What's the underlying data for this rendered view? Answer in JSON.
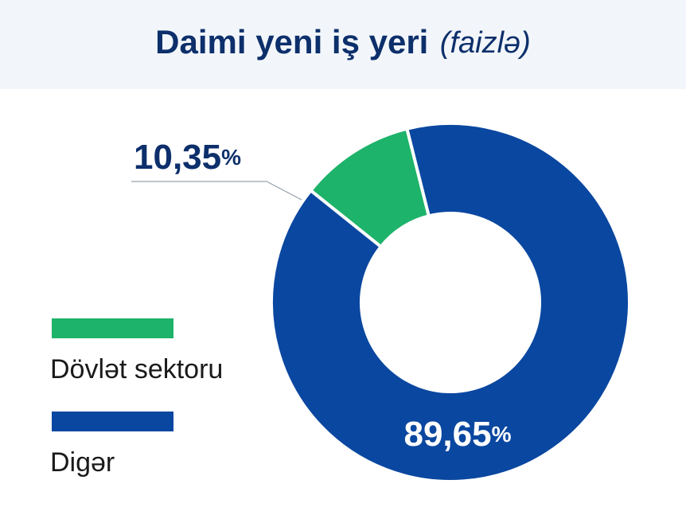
{
  "chart_data": {
    "type": "donut",
    "title": "Daimi yeni iş yeri",
    "title_note": "(faizlə)",
    "categories": [
      "Dövlət sektoru",
      "Digər"
    ],
    "values": [
      10.35,
      89.65
    ],
    "value_labels": [
      "10,35%",
      "89,65%"
    ],
    "colors": [
      "#1db36a",
      "#0a47a0"
    ]
  }
}
